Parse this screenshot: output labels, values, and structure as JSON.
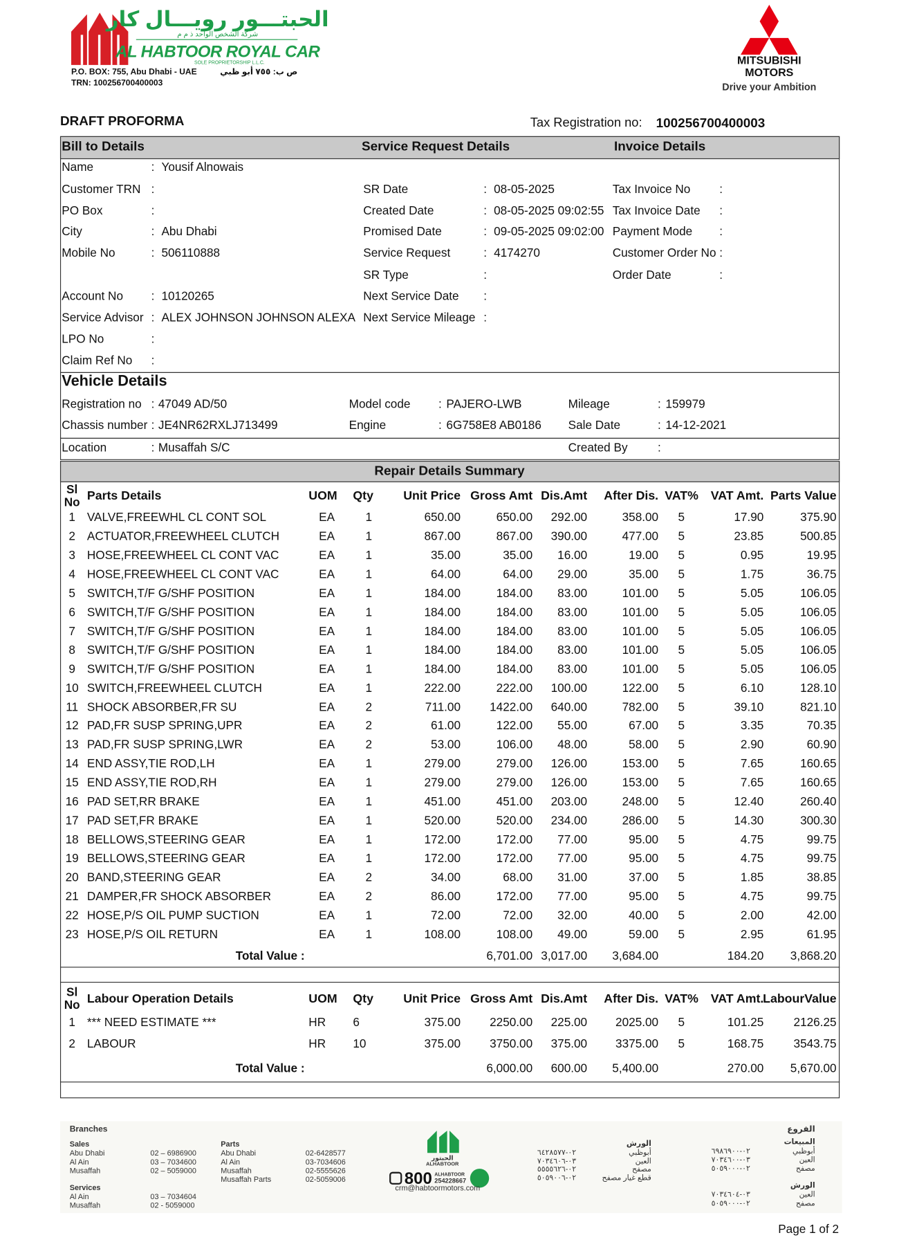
{
  "header": {
    "company_ar": "الحبتـــور رويـــال كار",
    "company_ar_sub": "شركة الشخص الواحد ذ م م",
    "company_en": "AL HABTOOR ROYAL CAR",
    "company_en_sub": "SOLE PROPRIETORSHIP L.L.C.",
    "po_box": "P.O. BOX: 755, Abu Dhabi - UAE",
    "po_box_ar": "ص ب: ٧٥٥ أبو ظبي",
    "trn": "TRN: 100256700400003",
    "brand_line1": "MITSUBISHI",
    "brand_line2": "MOTORS",
    "slogan": "Drive your Ambition"
  },
  "document": {
    "title": "DRAFT PROFORMA",
    "tax_label": "Tax Registration no:",
    "tax_value": "100256700400003"
  },
  "separator": ":",
  "sections": [
    "Bill to Details",
    "Service Request Details",
    "Invoice Details"
  ],
  "bill_to": [
    {
      "label": "Name",
      "value": "Yousif Alnowais"
    },
    {
      "label": "Customer TRN"
    },
    {
      "label": "PO Box"
    },
    {
      "label": "City",
      "value": "Abu Dhabi"
    },
    {
      "label": "Mobile No",
      "value": "506110888"
    },
    {
      "label": "Account No",
      "value": "10120265"
    },
    {
      "label": "Service Advisor",
      "value": "ALEX JOHNSON JOHNSON ALEXA"
    },
    {
      "label": "LPO No"
    },
    {
      "label": "Claim Ref No"
    }
  ],
  "service_request": [
    {
      "label": "SR Date",
      "value": "08-05-2025"
    },
    {
      "label": "Created Date",
      "value": "08-05-2025 09:02:55"
    },
    {
      "label": "Promised Date",
      "value": "09-05-2025 09:02:00"
    },
    {
      "label": "Service Request",
      "value": "4174270"
    },
    {
      "label": "SR Type"
    },
    {
      "label": "Next Service Date"
    },
    {
      "label": "Next Service Mileage"
    }
  ],
  "invoice": [
    {
      "label": "Tax Invoice No"
    },
    {
      "label": "Tax Invoice Date"
    },
    {
      "label": "Payment Mode"
    },
    {
      "label": "Customer Order No"
    },
    {
      "label": "Order Date"
    }
  ],
  "vehicle": {
    "title": "Vehicle Details",
    "fields": [
      {
        "label": "Registration no",
        "value": "47049 AD/50"
      },
      {
        "label": "Model code",
        "value": "PAJERO-LWB"
      },
      {
        "label": "Mileage",
        "value": "159979"
      },
      {
        "label": "Chassis number",
        "value": "JE4NR62RXLJ713499"
      },
      {
        "label": "Engine",
        "value": "6G758E8  AB0186"
      },
      {
        "label": "Sale Date",
        "value": "14-12-2021"
      },
      {
        "label": "Location",
        "value": "Musaffah S/C"
      },
      {
        "label": "Created By"
      }
    ]
  },
  "repair": {
    "title": "Repair Details Summary",
    "columns": [
      "Sl No",
      "Parts Details",
      "UOM",
      "Qty",
      "Unit Price",
      "Gross Amt",
      "Dis.Amt",
      "After Dis.",
      "VAT%",
      "VAT Amt.",
      "Parts Value"
    ],
    "rows": [
      [
        "1",
        "VALVE,FREEWHL CL CONT SOL",
        "EA",
        "1",
        "650.00",
        "650.00",
        "292.00",
        "358.00",
        "5",
        "17.90",
        "375.90"
      ],
      [
        "2",
        "ACTUATOR,FREEWHEEL CLUTCH",
        "EA",
        "1",
        "867.00",
        "867.00",
        "390.00",
        "477.00",
        "5",
        "23.85",
        "500.85"
      ],
      [
        "3",
        "HOSE,FREEWHEEL CL CONT VAC",
        "EA",
        "1",
        "35.00",
        "35.00",
        "16.00",
        "19.00",
        "5",
        "0.95",
        "19.95"
      ],
      [
        "4",
        "HOSE,FREEWHEEL CL CONT VAC",
        "EA",
        "1",
        "64.00",
        "64.00",
        "29.00",
        "35.00",
        "5",
        "1.75",
        "36.75"
      ],
      [
        "5",
        "SWITCH,T/F G/SHF POSITION",
        "EA",
        "1",
        "184.00",
        "184.00",
        "83.00",
        "101.00",
        "5",
        "5.05",
        "106.05"
      ],
      [
        "6",
        "SWITCH,T/F G/SHF POSITION",
        "EA",
        "1",
        "184.00",
        "184.00",
        "83.00",
        "101.00",
        "5",
        "5.05",
        "106.05"
      ],
      [
        "7",
        "SWITCH,T/F G/SHF POSITION",
        "EA",
        "1",
        "184.00",
        "184.00",
        "83.00",
        "101.00",
        "5",
        "5.05",
        "106.05"
      ],
      [
        "8",
        "SWITCH,T/F G/SHF POSITION",
        "EA",
        "1",
        "184.00",
        "184.00",
        "83.00",
        "101.00",
        "5",
        "5.05",
        "106.05"
      ],
      [
        "9",
        "SWITCH,T/F G/SHF POSITION",
        "EA",
        "1",
        "184.00",
        "184.00",
        "83.00",
        "101.00",
        "5",
        "5.05",
        "106.05"
      ],
      [
        "10",
        "SWITCH,FREEWHEEL CLUTCH",
        "EA",
        "1",
        "222.00",
        "222.00",
        "100.00",
        "122.00",
        "5",
        "6.10",
        "128.10"
      ],
      [
        "11",
        "SHOCK ABSORBER,FR SU",
        "EA",
        "2",
        "711.00",
        "1422.00",
        "640.00",
        "782.00",
        "5",
        "39.10",
        "821.10"
      ],
      [
        "12",
        "PAD,FR SUSP SPRING,UPR",
        "EA",
        "2",
        "61.00",
        "122.00",
        "55.00",
        "67.00",
        "5",
        "3.35",
        "70.35"
      ],
      [
        "13",
        "PAD,FR SUSP SPRING,LWR",
        "EA",
        "2",
        "53.00",
        "106.00",
        "48.00",
        "58.00",
        "5",
        "2.90",
        "60.90"
      ],
      [
        "14",
        "END ASSY,TIE ROD,LH",
        "EA",
        "1",
        "279.00",
        "279.00",
        "126.00",
        "153.00",
        "5",
        "7.65",
        "160.65"
      ],
      [
        "15",
        "END ASSY,TIE ROD,RH",
        "EA",
        "1",
        "279.00",
        "279.00",
        "126.00",
        "153.00",
        "5",
        "7.65",
        "160.65"
      ],
      [
        "16",
        "PAD SET,RR BRAKE",
        "EA",
        "1",
        "451.00",
        "451.00",
        "203.00",
        "248.00",
        "5",
        "12.40",
        "260.40"
      ],
      [
        "17",
        "PAD SET,FR BRAKE",
        "EA",
        "1",
        "520.00",
        "520.00",
        "234.00",
        "286.00",
        "5",
        "14.30",
        "300.30"
      ],
      [
        "18",
        "BELLOWS,STEERING GEAR",
        "EA",
        "1",
        "172.00",
        "172.00",
        "77.00",
        "95.00",
        "5",
        "4.75",
        "99.75"
      ],
      [
        "19",
        "BELLOWS,STEERING GEAR",
        "EA",
        "1",
        "172.00",
        "172.00",
        "77.00",
        "95.00",
        "5",
        "4.75",
        "99.75"
      ],
      [
        "20",
        "BAND,STEERING GEAR",
        "EA",
        "2",
        "34.00",
        "68.00",
        "31.00",
        "37.00",
        "5",
        "1.85",
        "38.85"
      ],
      [
        "21",
        "DAMPER,FR SHOCK ABSORBER",
        "EA",
        "2",
        "86.00",
        "172.00",
        "77.00",
        "95.00",
        "5",
        "4.75",
        "99.75"
      ],
      [
        "22",
        "HOSE,P/S OIL PUMP SUCTION",
        "EA",
        "1",
        "72.00",
        "72.00",
        "32.00",
        "40.00",
        "5",
        "2.00",
        "42.00"
      ],
      [
        "23",
        "HOSE,P/S OIL RETURN",
        "EA",
        "1",
        "108.00",
        "108.00",
        "49.00",
        "59.00",
        "5",
        "2.95",
        "61.95"
      ]
    ],
    "total_label": "Total Value :",
    "totals": [
      "6,701.00",
      "3,017.00",
      "3,684.00",
      "184.20",
      "3,868.20"
    ]
  },
  "labour": {
    "columns": [
      "Sl No",
      "Labour Operation Details",
      "UOM",
      "Qty",
      "Unit Price",
      "Gross Amt",
      "Dis.Amt",
      "After Dis.",
      "VAT%",
      "VAT Amt.",
      "LabourValue"
    ],
    "rows": [
      [
        "1",
        "*** NEED ESTIMATE ***",
        "HR",
        "6",
        "375.00",
        "2250.00",
        "225.00",
        "2025.00",
        "5",
        "101.25",
        "2126.25"
      ],
      [
        "2",
        "LABOUR",
        "HR",
        "10",
        "375.00",
        "3750.00",
        "375.00",
        "3375.00",
        "5",
        "168.75",
        "3543.75"
      ]
    ],
    "total_label": "Total Value :",
    "totals": [
      "6,000.00",
      "600.00",
      "5,400.00",
      "270.00",
      "5,670.00"
    ]
  },
  "footer": {
    "branches": "Branches",
    "sales": {
      "title": "Sales",
      "items": [
        [
          "Abu Dhabi",
          "02 – 6986900"
        ],
        [
          "Al Ain",
          "03 – 7034600"
        ],
        [
          "Musaffah",
          "02 – 5059000"
        ]
      ]
    },
    "services": {
      "title": "Services",
      "items": [
        [
          "Al Ain",
          "03 – 7034604"
        ],
        [
          "Musaffah",
          "02 - 5059000"
        ]
      ]
    },
    "parts": {
      "title": "Parts",
      "items": [
        [
          "Abu Dhabi",
          "02-6428577"
        ],
        [
          "Al Ain",
          "03-7034606"
        ],
        [
          "Musaffah",
          "02-5555626"
        ],
        [
          "Musaffah Parts",
          "02-5059006"
        ]
      ]
    },
    "logo_ar": "الحبتور",
    "logo_en": "ALHABTOOR",
    "hotline": "800",
    "hotline_brand": "ALHABTOOR",
    "hotline_number": "254228667",
    "email": "crm@habtoormotors.com",
    "ar_branches": "الفروع",
    "ar_sales": {
      "title": "المبيعات",
      "items": [
        [
          "أبوظبي",
          "٠٢-٦٩٨٦٩٠٠"
        ],
        [
          "العين",
          "٠٣-٧٠٣٤٦٠٠"
        ],
        [
          "مصفح",
          "٠٢-٥٠٥٩٠٠٠"
        ]
      ]
    },
    "ar_services": {
      "title": "الورش",
      "items": [
        [
          "العين",
          "٠٣-٧٠٣٤٦٠٤"
        ],
        [
          "مصفح",
          "٠٢-٥٠٥٩٠٠٠"
        ]
      ]
    },
    "ar_parts": {
      "title": "الورش",
      "items": [
        [
          "أبوظبي",
          "٠٢-٦٤٢٨٥٧٧"
        ],
        [
          "العين",
          "٠٣-٧٠٣٤٦٠٦"
        ],
        [
          "مصفح",
          "٠٢-٥٥٥٥٦٢٦"
        ],
        [
          "قطع غيار مصفح",
          "٠٢-٥٠٥٩٠٠٦"
        ]
      ]
    }
  },
  "page_label": "Page 1 of 2"
}
